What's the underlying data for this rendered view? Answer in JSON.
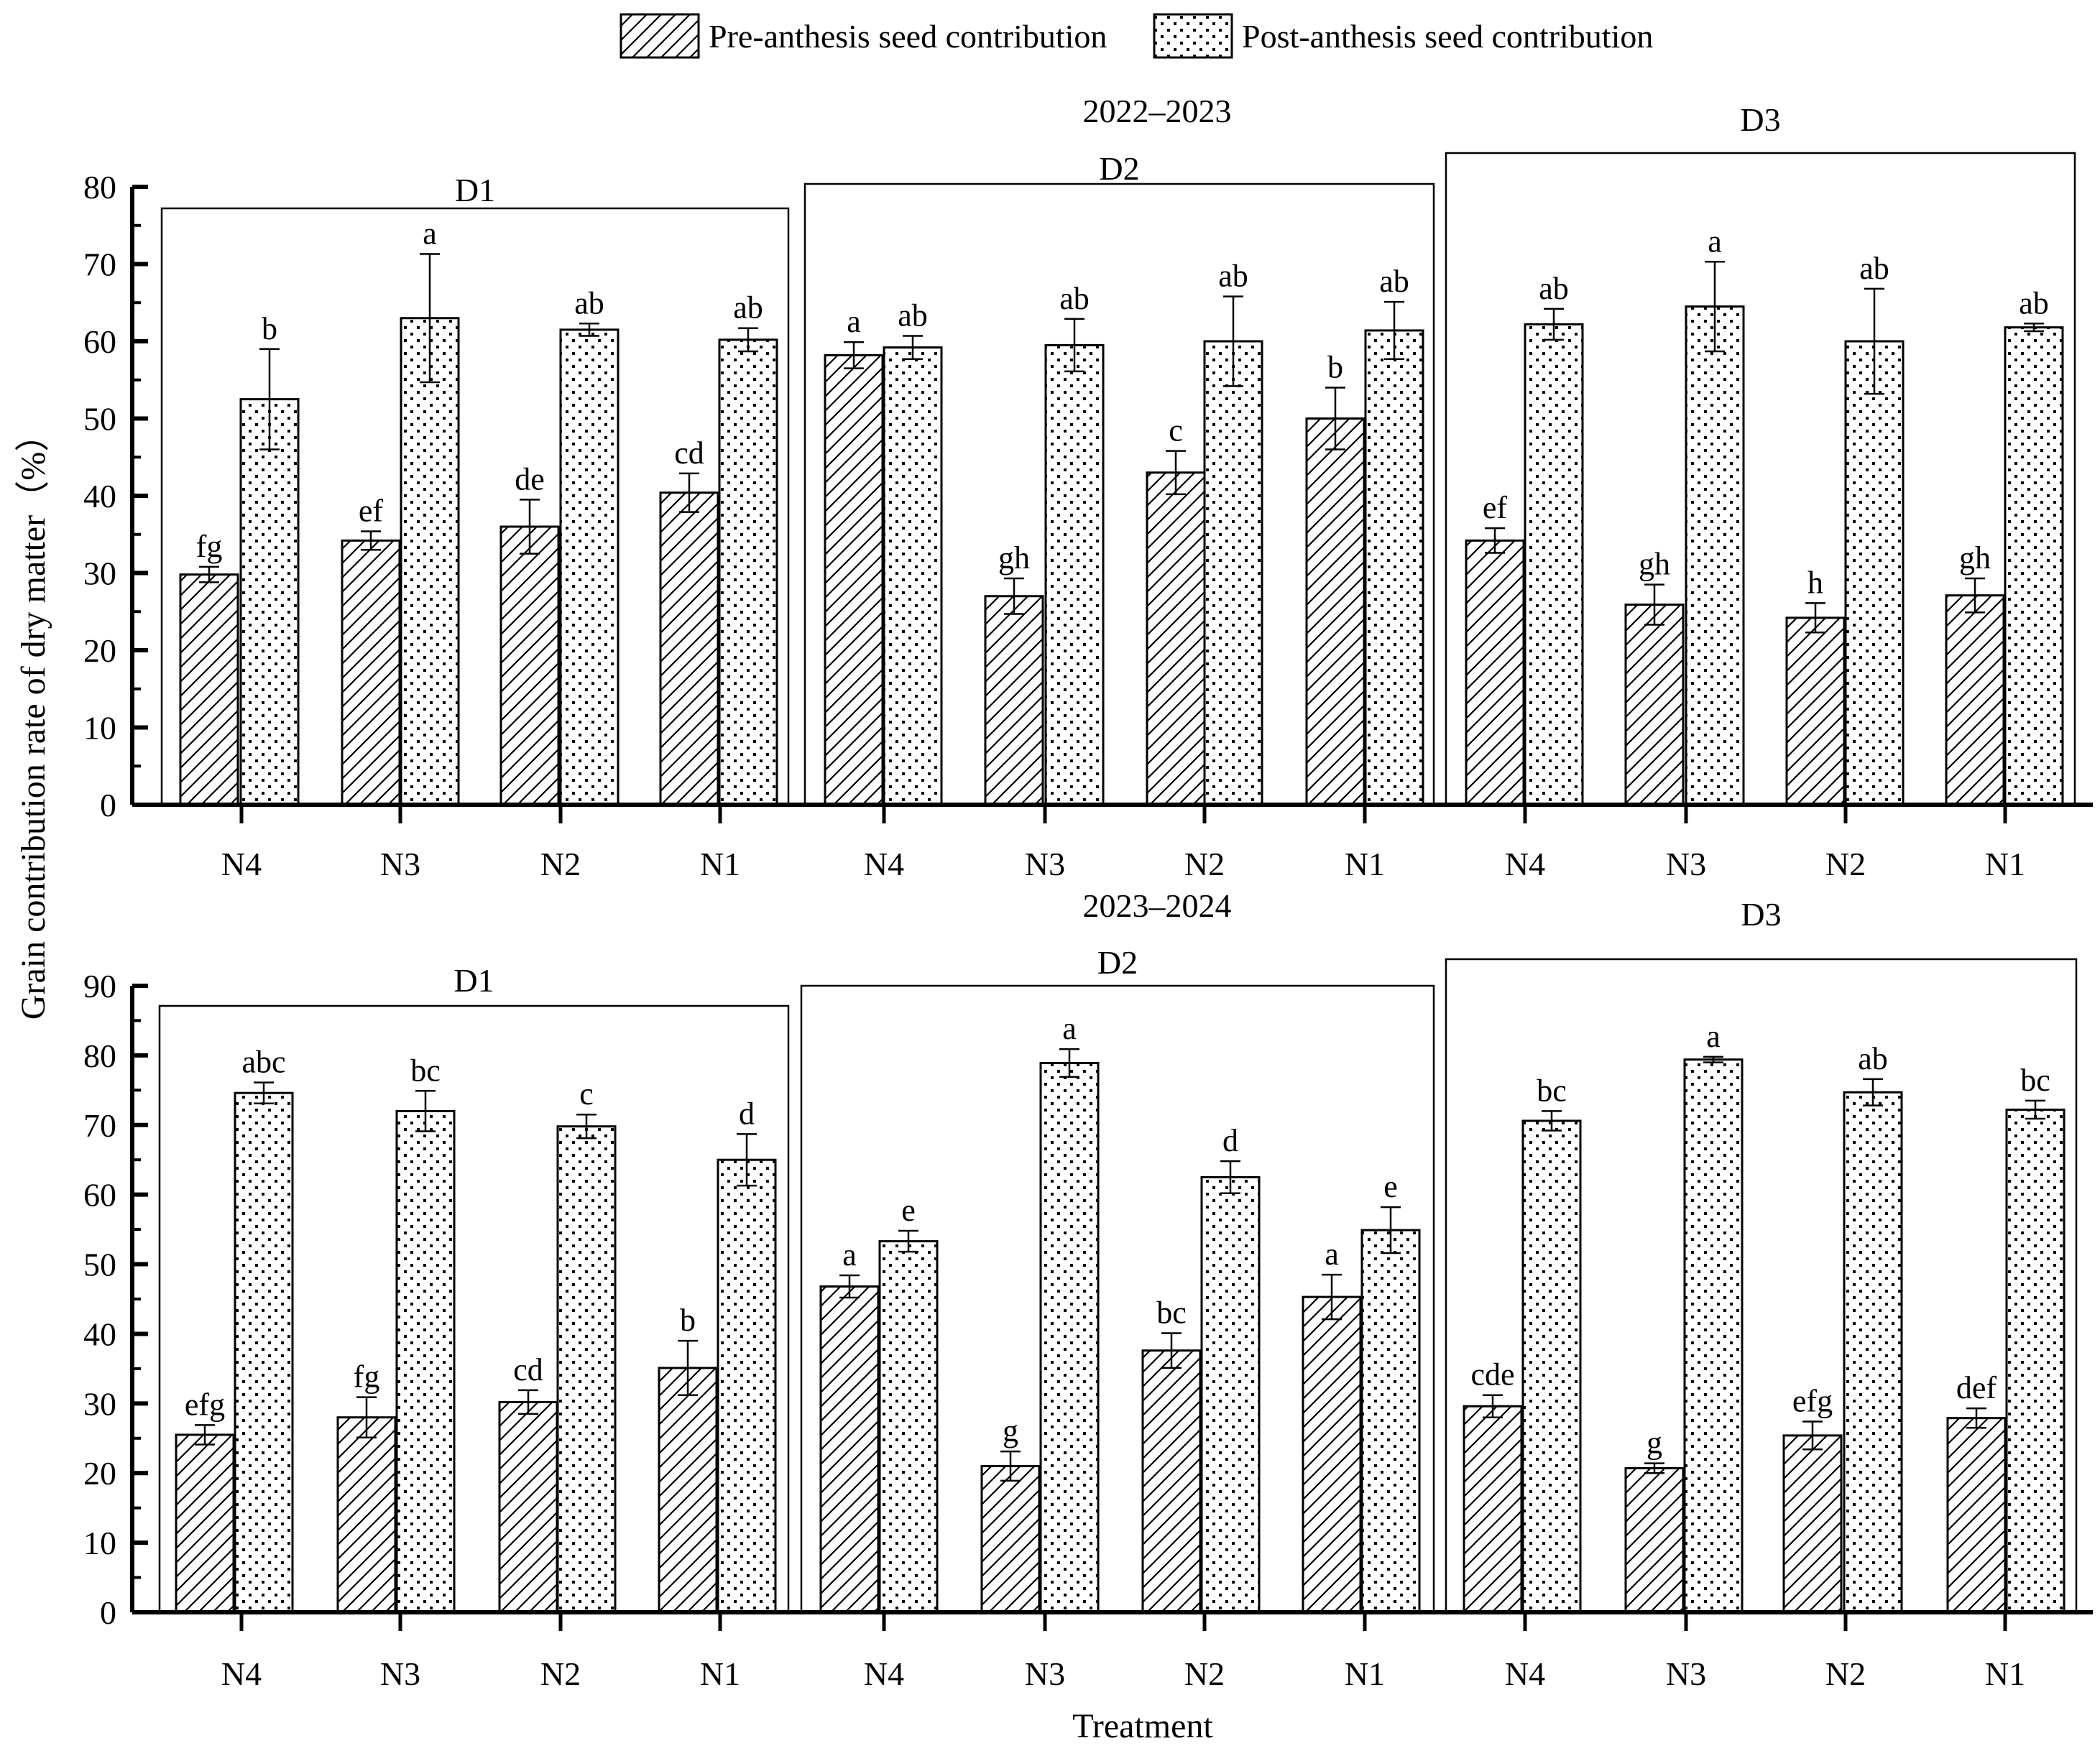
{
  "legend": {
    "pre": "Pre-anthesis seed contribution",
    "post": "Post-anthesis seed contribution"
  },
  "ylabel": "Grain contribution rate of dry matter（%）",
  "xlabel": "Treatment",
  "chart_data": [
    {
      "type": "bar",
      "title": "2022–2023",
      "ylim": [
        0,
        80
      ],
      "yticks": [
        0,
        10,
        20,
        30,
        40,
        50,
        60,
        70,
        80
      ],
      "groups": [
        {
          "name": "D1",
          "categories": [
            "N4",
            "N3",
            "N2",
            "N1"
          ],
          "pre": {
            "values": [
              29.8,
              34.2,
              36.0,
              40.4
            ],
            "errors": [
              1.0,
              1.2,
              3.5,
              2.5
            ],
            "letters": [
              "fg",
              "ef",
              "de",
              "cd"
            ]
          },
          "post": {
            "values": [
              52.5,
              63.0,
              61.5,
              60.2
            ],
            "errors": [
              6.5,
              8.3,
              0.8,
              1.5
            ],
            "letters": [
              "b",
              "a",
              "ab",
              "ab"
            ]
          }
        },
        {
          "name": "D2",
          "categories": [
            "N4",
            "N3",
            "N2",
            "N1"
          ],
          "pre": {
            "values": [
              58.2,
              27.0,
              43.0,
              50.0
            ],
            "errors": [
              1.7,
              2.3,
              2.8,
              4.0
            ],
            "letters": [
              "a",
              "gh",
              "c",
              "b"
            ]
          },
          "post": {
            "values": [
              59.2,
              59.5,
              60.0,
              61.4
            ],
            "errors": [
              1.5,
              3.4,
              5.8,
              3.7
            ],
            "letters": [
              "ab",
              "ab",
              "ab",
              "ab"
            ]
          }
        },
        {
          "name": "D3",
          "categories": [
            "N4",
            "N3",
            "N2",
            "N1"
          ],
          "pre": {
            "values": [
              34.2,
              25.9,
              24.2,
              27.1
            ],
            "errors": [
              1.6,
              2.6,
              1.9,
              2.2
            ],
            "letters": [
              "ef",
              "gh",
              "h",
              "gh"
            ]
          },
          "post": {
            "values": [
              62.2,
              64.5,
              60.0,
              61.8
            ],
            "errors": [
              2.0,
              5.8,
              6.8,
              0.5
            ],
            "letters": [
              "ab",
              "a",
              "ab",
              "ab"
            ]
          }
        }
      ]
    },
    {
      "type": "bar",
      "title": "2023–2024",
      "ylim": [
        0,
        90
      ],
      "yticks": [
        0,
        10,
        20,
        30,
        40,
        50,
        60,
        70,
        80,
        90
      ],
      "groups": [
        {
          "name": "D1",
          "categories": [
            "N4",
            "N3",
            "N2",
            "N1"
          ],
          "pre": {
            "values": [
              25.5,
              28.0,
              30.2,
              35.1
            ],
            "errors": [
              1.4,
              2.9,
              1.7,
              3.9
            ],
            "letters": [
              "efg",
              "fg",
              "cd",
              "b"
            ]
          },
          "post": {
            "values": [
              74.6,
              72.0,
              69.8,
              65.0
            ],
            "errors": [
              1.5,
              2.9,
              1.7,
              3.7
            ],
            "letters": [
              "abc",
              "bc",
              "c",
              "d"
            ]
          }
        },
        {
          "name": "D2",
          "categories": [
            "N4",
            "N3",
            "N2",
            "N1"
          ],
          "pre": {
            "values": [
              46.8,
              21.0,
              37.6,
              45.3
            ],
            "errors": [
              1.6,
              2.1,
              2.5,
              3.2
            ],
            "letters": [
              "a",
              "g",
              "bc",
              "a"
            ]
          },
          "post": {
            "values": [
              53.3,
              78.9,
              62.5,
              54.9
            ],
            "errors": [
              1.5,
              2.0,
              2.3,
              3.3
            ],
            "letters": [
              "e",
              "a",
              "d",
              "e"
            ]
          }
        },
        {
          "name": "D3",
          "categories": [
            "N4",
            "N3",
            "N2",
            "N1"
          ],
          "pre": {
            "values": [
              29.6,
              20.7,
              25.4,
              27.9
            ],
            "errors": [
              1.6,
              0.7,
              2.0,
              1.4
            ],
            "letters": [
              "cde",
              "g",
              "efg",
              "def"
            ]
          },
          "post": {
            "values": [
              70.6,
              79.4,
              74.7,
              72.2
            ],
            "errors": [
              1.4,
              0.4,
              1.9,
              1.3
            ],
            "letters": [
              "bc",
              "a",
              "ab",
              "bc"
            ]
          }
        }
      ]
    }
  ]
}
